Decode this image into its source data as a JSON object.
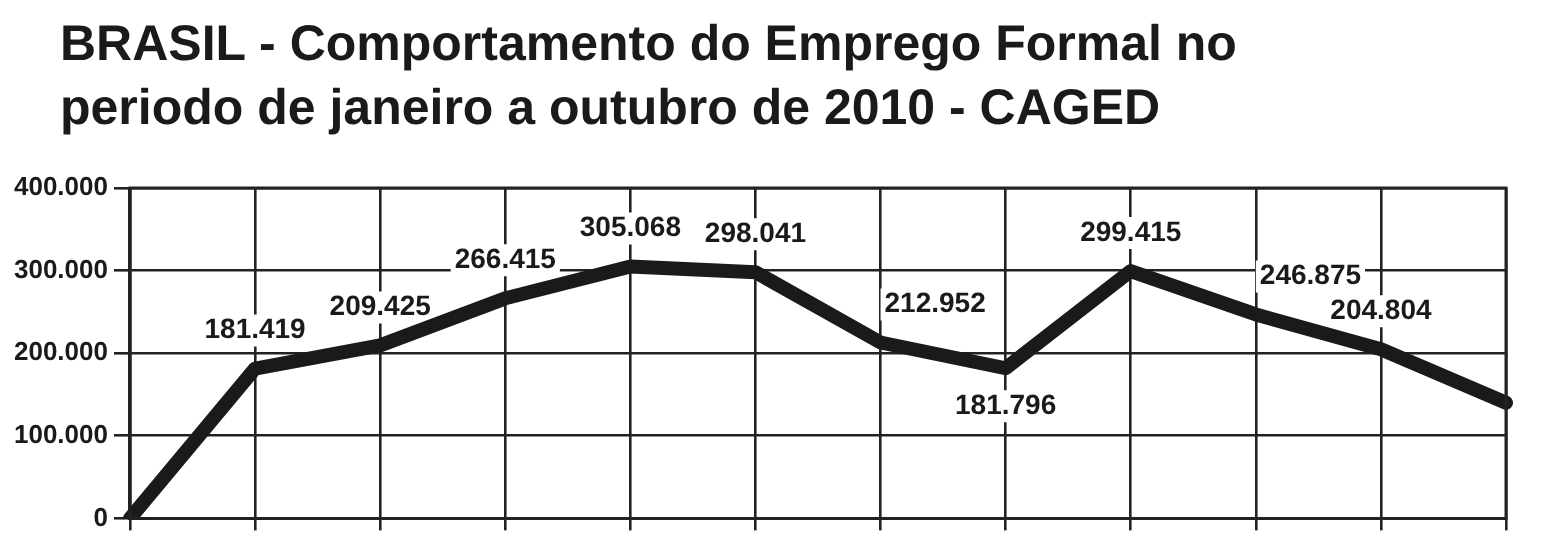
{
  "chart_data": {
    "type": "line",
    "title": "BRASIL - Comportamento do Emprego Formal no\nperiodo de janeiro a outubro de 2010 - CAGED",
    "categories": [
      null,
      null,
      null,
      null,
      null,
      null,
      null,
      null,
      null,
      null,
      null,
      null
    ],
    "series": [
      {
        "color": "#1a1a1a",
        "values": [
          0,
          181419,
          209425,
          266415,
          305068,
          298041,
          212952,
          181796,
          299415,
          246875,
          204804,
          140000
        ],
        "value_labels": [
          null,
          "181.419",
          "209.425",
          "266.415",
          "305.068",
          "298.041",
          "212.952",
          "181.796",
          "299.415",
          "246.875",
          "204.804",
          null
        ]
      }
    ],
    "ylim": [
      0,
      400000
    ],
    "yticks": [
      {
        "value": 0,
        "label": "0"
      },
      {
        "value": 100000,
        "label": "100.000"
      },
      {
        "value": 200000,
        "label": "200.000"
      },
      {
        "value": 300000,
        "label": "300.000"
      },
      {
        "value": 400000,
        "label": "400.000"
      }
    ],
    "grid": true,
    "legend": false,
    "marker": "none",
    "line_style": "solid",
    "tick_labels": "y"
  }
}
